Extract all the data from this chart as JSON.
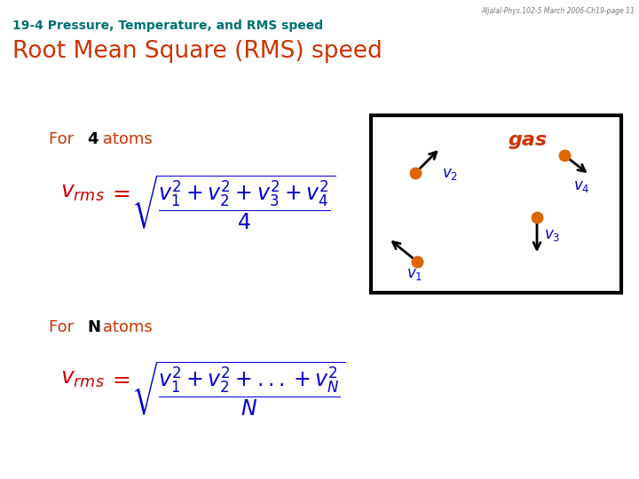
{
  "header_text": "Aljalal-Phys.102-5 March 2006-Ch19-page 11",
  "section_title": "19-4 Pressure, Temperature, and RMS speed",
  "main_title": "Root Mean Square (RMS) speed",
  "gas_label": "gas",
  "color_teal": "#007070",
  "color_red": "#CC3300",
  "color_dark_red": "#CC0000",
  "color_blue": "#0000CC",
  "color_orange": "#DD6600",
  "color_black": "#000000",
  "color_gray": "#777777",
  "color_white": "#FFFFFF",
  "bg_color": "#FFFFFF"
}
